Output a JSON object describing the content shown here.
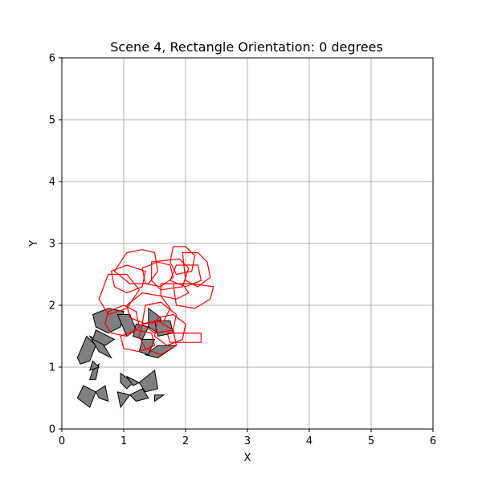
{
  "chart_data": {
    "type": "scatter",
    "title": "Scene 4, Rectangle Orientation: 0 degrees",
    "xlabel": "X",
    "ylabel": "Y",
    "xlim": [
      0,
      6
    ],
    "ylim": [
      0,
      6
    ],
    "xticks": [
      0,
      1,
      2,
      3,
      4,
      5,
      6
    ],
    "yticks": [
      0,
      1,
      2,
      3,
      4,
      5,
      6
    ],
    "grid": true,
    "colors": {
      "outline_polygons": "#ff0000",
      "filled_polygon_fill": "#808080",
      "filled_polygon_edge": "#000000",
      "grid": "#b0b0b0"
    },
    "outline_polygons": [
      [
        [
          1.05,
          2.85
        ],
        [
          1.3,
          2.9
        ],
        [
          1.5,
          2.85
        ],
        [
          1.55,
          2.55
        ],
        [
          1.4,
          2.35
        ],
        [
          1.1,
          2.35
        ],
        [
          0.85,
          2.55
        ]
      ],
      [
        [
          1.8,
          2.95
        ],
        [
          2.0,
          2.95
        ],
        [
          2.15,
          2.8
        ],
        [
          2.1,
          2.55
        ],
        [
          1.85,
          2.5
        ],
        [
          1.75,
          2.7
        ]
      ],
      [
        [
          1.95,
          2.85
        ],
        [
          2.2,
          2.85
        ],
        [
          2.35,
          2.7
        ],
        [
          2.4,
          2.45
        ],
        [
          2.2,
          2.3
        ],
        [
          2.0,
          2.4
        ]
      ],
      [
        [
          1.3,
          2.6
        ],
        [
          1.55,
          2.7
        ],
        [
          1.75,
          2.65
        ],
        [
          1.8,
          2.45
        ],
        [
          1.6,
          2.3
        ],
        [
          1.35,
          2.35
        ]
      ],
      [
        [
          1.45,
          2.7
        ],
        [
          1.9,
          2.75
        ],
        [
          2.05,
          2.6
        ],
        [
          1.95,
          2.3
        ],
        [
          1.6,
          2.25
        ],
        [
          1.45,
          2.4
        ]
      ],
      [
        [
          0.8,
          2.55
        ],
        [
          1.05,
          2.65
        ],
        [
          1.35,
          2.55
        ],
        [
          1.3,
          2.3
        ],
        [
          1.05,
          2.2
        ],
        [
          0.85,
          2.3
        ]
      ],
      [
        [
          0.6,
          2.1
        ],
        [
          0.75,
          2.5
        ],
        [
          1.05,
          2.5
        ],
        [
          1.25,
          2.25
        ],
        [
          1.05,
          1.95
        ],
        [
          0.75,
          1.85
        ]
      ],
      [
        [
          1.8,
          2.35
        ],
        [
          2.1,
          2.35
        ],
        [
          2.45,
          2.3
        ],
        [
          2.4,
          2.1
        ],
        [
          2.15,
          1.95
        ],
        [
          1.85,
          2.0
        ]
      ],
      [
        [
          1.85,
          2.65
        ],
        [
          2.2,
          2.65
        ],
        [
          2.25,
          2.4
        ],
        [
          2.0,
          2.3
        ],
        [
          1.75,
          2.4
        ]
      ],
      [
        [
          1.05,
          2.0
        ],
        [
          1.3,
          2.2
        ],
        [
          1.6,
          2.15
        ],
        [
          1.75,
          1.95
        ],
        [
          1.65,
          1.75
        ],
        [
          1.35,
          1.7
        ],
        [
          1.1,
          1.8
        ]
      ],
      [
        [
          1.35,
          2.0
        ],
        [
          1.6,
          2.05
        ],
        [
          1.85,
          1.85
        ],
        [
          1.8,
          1.6
        ],
        [
          1.5,
          1.55
        ],
        [
          1.3,
          1.7
        ]
      ],
      [
        [
          0.75,
          1.9
        ],
        [
          1.0,
          2.0
        ],
        [
          1.2,
          1.9
        ],
        [
          1.25,
          1.65
        ],
        [
          1.05,
          1.5
        ],
        [
          0.8,
          1.55
        ],
        [
          0.7,
          1.7
        ]
      ],
      [
        [
          1.3,
          1.7
        ],
        [
          1.55,
          1.75
        ],
        [
          1.8,
          1.6
        ],
        [
          1.85,
          1.35
        ],
        [
          1.6,
          1.2
        ],
        [
          1.35,
          1.3
        ],
        [
          1.25,
          1.5
        ]
      ],
      [
        [
          1.55,
          1.8
        ],
        [
          1.8,
          1.85
        ],
        [
          2.0,
          1.7
        ],
        [
          1.95,
          1.45
        ],
        [
          1.7,
          1.35
        ],
        [
          1.5,
          1.5
        ]
      ],
      [
        [
          0.95,
          1.5
        ],
        [
          1.2,
          1.6
        ],
        [
          1.45,
          1.55
        ],
        [
          1.5,
          1.35
        ],
        [
          1.25,
          1.25
        ],
        [
          1.0,
          1.3
        ]
      ],
      [
        [
          1.7,
          1.55
        ],
        [
          2.25,
          1.55
        ],
        [
          2.25,
          1.4
        ],
        [
          1.75,
          1.4
        ]
      ],
      [
        [
          1.6,
          2.35
        ],
        [
          1.95,
          2.35
        ],
        [
          2.05,
          2.2
        ],
        [
          1.85,
          2.1
        ],
        [
          1.6,
          2.15
        ]
      ]
    ],
    "filled_polygons": [
      [
        [
          0.5,
          1.85
        ],
        [
          0.75,
          1.95
        ],
        [
          1.0,
          1.9
        ],
        [
          0.95,
          1.65
        ],
        [
          0.75,
          1.55
        ],
        [
          0.55,
          1.65
        ]
      ],
      [
        [
          0.25,
          1.15
        ],
        [
          0.4,
          1.5
        ],
        [
          0.55,
          1.35
        ],
        [
          0.45,
          1.1
        ],
        [
          0.3,
          1.05
        ]
      ],
      [
        [
          0.45,
          1.5
        ],
        [
          0.6,
          1.25
        ],
        [
          0.8,
          1.15
        ],
        [
          0.65,
          1.4
        ]
      ],
      [
        [
          0.55,
          1.6
        ],
        [
          0.85,
          1.45
        ],
        [
          0.7,
          1.35
        ],
        [
          0.5,
          1.45
        ]
      ],
      [
        [
          0.9,
          1.85
        ],
        [
          1.05,
          1.5
        ],
        [
          1.2,
          1.6
        ],
        [
          1.1,
          1.85
        ]
      ],
      [
        [
          1.2,
          1.7
        ],
        [
          1.4,
          1.65
        ],
        [
          1.3,
          1.45
        ],
        [
          1.15,
          1.5
        ]
      ],
      [
        [
          1.4,
          1.95
        ],
        [
          1.6,
          1.8
        ],
        [
          1.55,
          1.55
        ],
        [
          1.4,
          1.65
        ]
      ],
      [
        [
          1.5,
          1.75
        ],
        [
          1.75,
          1.75
        ],
        [
          1.8,
          1.55
        ],
        [
          1.55,
          1.5
        ]
      ],
      [
        [
          1.35,
          1.2
        ],
        [
          1.55,
          1.35
        ],
        [
          1.85,
          1.35
        ],
        [
          1.55,
          1.15
        ]
      ],
      [
        [
          1.3,
          1.45
        ],
        [
          1.5,
          1.45
        ],
        [
          1.4,
          1.2
        ],
        [
          1.25,
          1.25
        ]
      ],
      [
        [
          0.5,
          0.95
        ],
        [
          0.6,
          1.05
        ],
        [
          0.55,
          0.8
        ],
        [
          0.45,
          0.8
        ]
      ],
      [
        [
          0.25,
          0.5
        ],
        [
          0.35,
          0.7
        ],
        [
          0.55,
          0.6
        ],
        [
          0.45,
          0.35
        ]
      ],
      [
        [
          0.55,
          0.6
        ],
        [
          0.7,
          0.7
        ],
        [
          0.75,
          0.45
        ],
        [
          0.6,
          0.5
        ]
      ],
      [
        [
          0.95,
          0.9
        ],
        [
          1.15,
          0.75
        ],
        [
          1.05,
          0.65
        ],
        [
          0.95,
          0.75
        ]
      ],
      [
        [
          1.25,
          0.75
        ],
        [
          1.5,
          0.95
        ],
        [
          1.55,
          0.65
        ],
        [
          1.35,
          0.6
        ]
      ],
      [
        [
          1.1,
          0.55
        ],
        [
          1.3,
          0.65
        ],
        [
          1.4,
          0.5
        ],
        [
          1.2,
          0.45
        ]
      ],
      [
        [
          0.9,
          0.6
        ],
        [
          1.1,
          0.55
        ],
        [
          0.95,
          0.35
        ]
      ],
      [
        [
          1.5,
          0.55
        ],
        [
          1.65,
          0.55
        ],
        [
          1.5,
          0.45
        ]
      ],
      [
        [
          0.5,
          1.1
        ],
        [
          0.6,
          1.0
        ],
        [
          0.45,
          0.95
        ]
      ],
      [
        [
          1.05,
          0.85
        ],
        [
          1.25,
          0.75
        ],
        [
          1.15,
          0.7
        ]
      ]
    ]
  }
}
